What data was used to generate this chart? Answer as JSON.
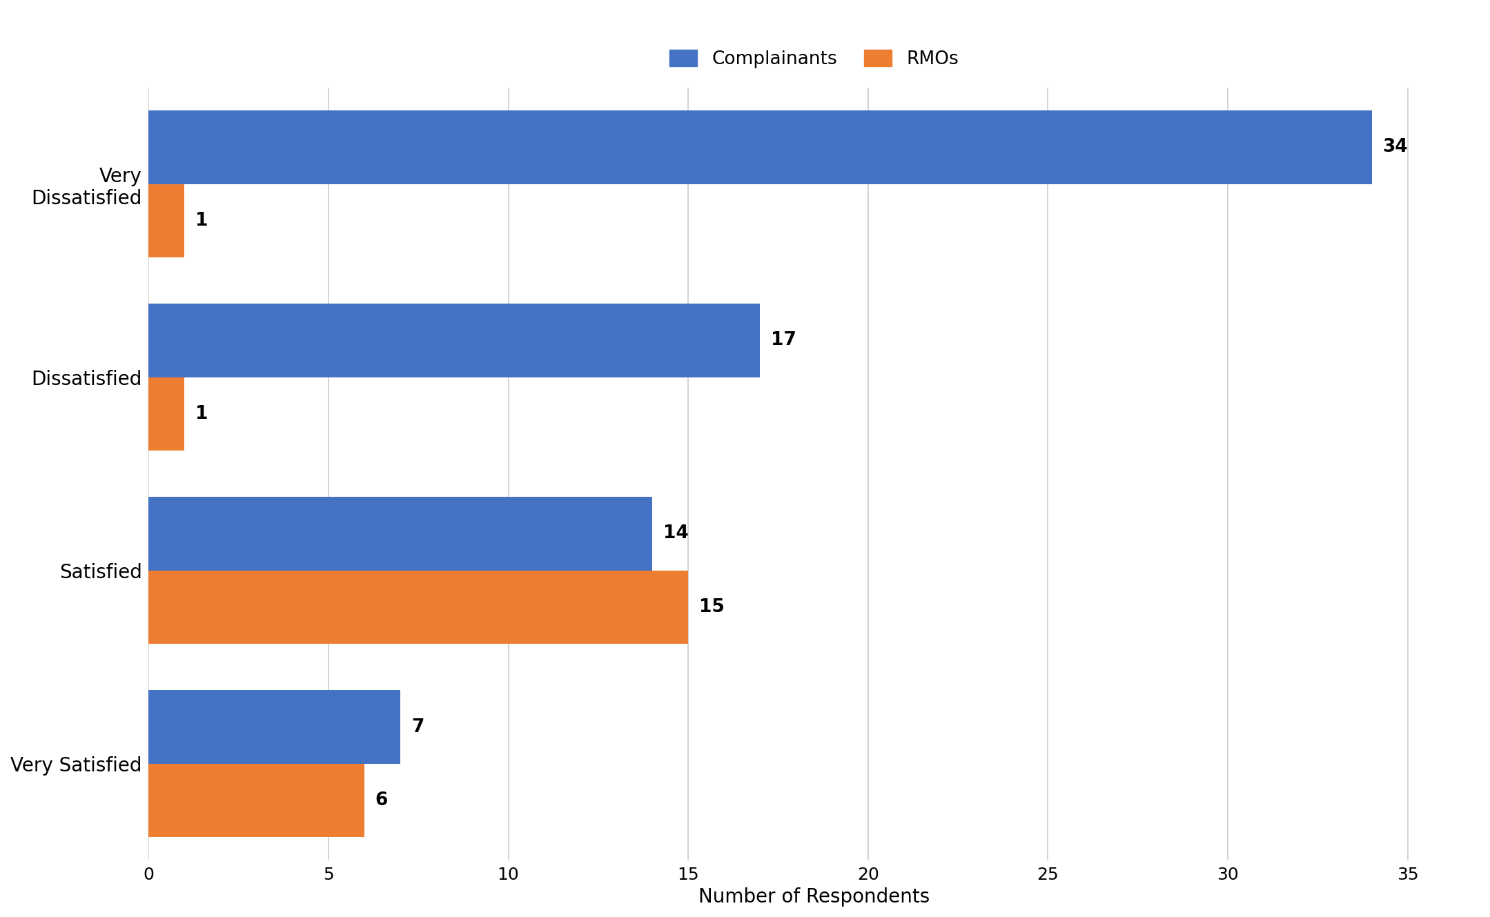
{
  "categories": [
    "Very\nDissatisfied",
    "Dissatisfied",
    "Satisfied",
    "Very Satisfied"
  ],
  "complainants": [
    34,
    17,
    14,
    7
  ],
  "rmos": [
    1,
    1,
    15,
    6
  ],
  "complainants_color": "#4472C4",
  "rmos_color": "#ED7D31",
  "xlabel": "Number of Respondents",
  "legend_labels": [
    "Complainants",
    "RMOs"
  ],
  "xlim": [
    0,
    37
  ],
  "xticks": [
    0,
    5,
    10,
    15,
    20,
    25,
    30,
    35
  ],
  "bar_height": 0.38,
  "label_fontsize": 20,
  "tick_fontsize": 18,
  "legend_fontsize": 19,
  "value_fontsize": 19,
  "xlabel_fontsize": 20,
  "background_color": "#ffffff",
  "grid_color": "#cccccc"
}
